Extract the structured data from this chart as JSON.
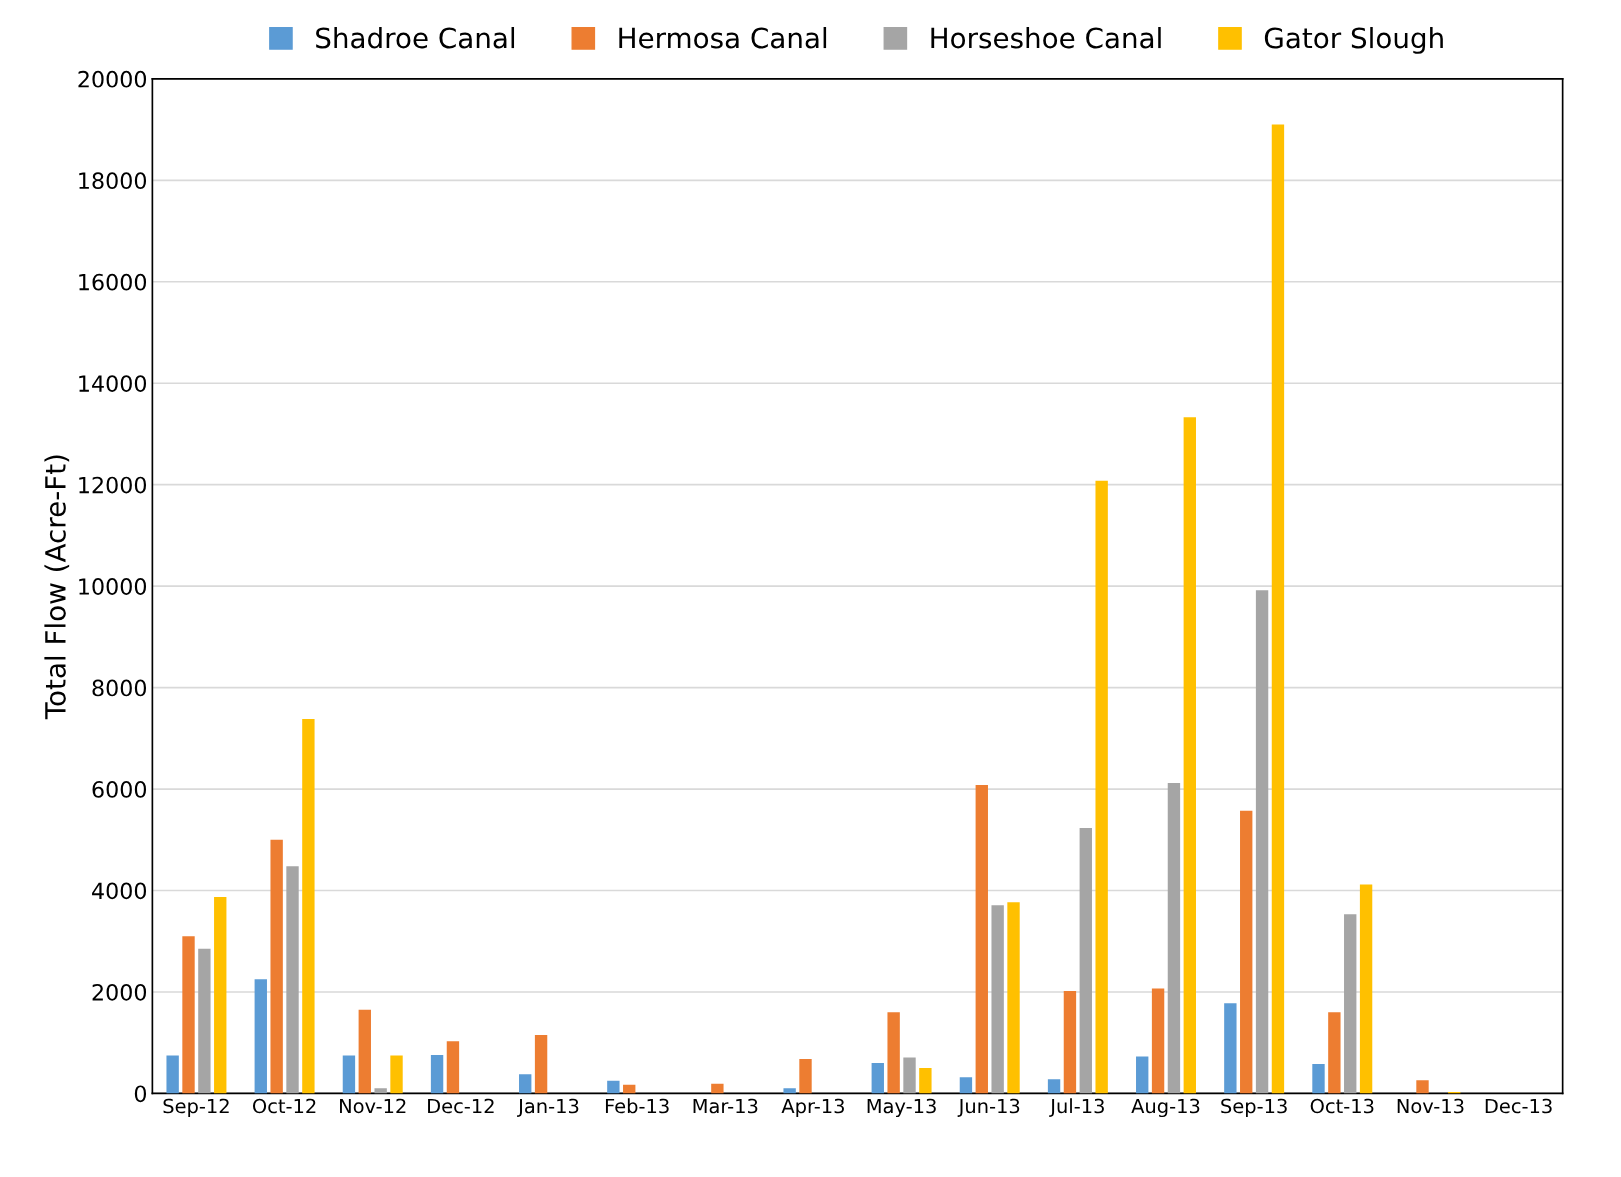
{
  "chart_data": {
    "type": "bar",
    "ylabel": "Total Flow (Acre-Ft)",
    "categories": [
      "Sep-12",
      "Oct-12",
      "Nov-12",
      "Dec-12",
      "Jan-13",
      "Feb-13",
      "Mar-13",
      "Apr-13",
      "May-13",
      "Jun-13",
      "Jul-13",
      "Aug-13",
      "Sep-13",
      "Oct-13",
      "Nov-13",
      "Dec-13"
    ],
    "series": [
      {
        "name": "Shadroe Canal",
        "color": "#5b9bd5",
        "values": [
          750,
          2250,
          750,
          760,
          380,
          250,
          0,
          100,
          600,
          320,
          280,
          730,
          1780,
          580,
          0,
          0
        ]
      },
      {
        "name": "Hermosa Canal",
        "color": "#ed7d31",
        "values": [
          3100,
          5000,
          1650,
          1030,
          1150,
          170,
          190,
          680,
          1600,
          6080,
          2020,
          2070,
          5570,
          1600,
          260,
          0
        ]
      },
      {
        "name": "Horseshoe Canal",
        "color": "#a5a5a5",
        "values": [
          2850,
          4480,
          100,
          0,
          0,
          0,
          0,
          0,
          710,
          3710,
          5230,
          6120,
          9920,
          3530,
          0,
          0
        ]
      },
      {
        "name": "Gator Slough",
        "color": "#ffc000",
        "values": [
          3870,
          7380,
          750,
          0,
          0,
          0,
          0,
          0,
          500,
          3770,
          12080,
          13330,
          19100,
          4120,
          30,
          0
        ]
      }
    ],
    "ylim": [
      0,
      20000
    ],
    "yticks": [
      0,
      2000,
      4000,
      6000,
      8000,
      10000,
      12000,
      14000,
      16000,
      18000,
      20000
    ],
    "grid": "y",
    "legend": "top"
  }
}
